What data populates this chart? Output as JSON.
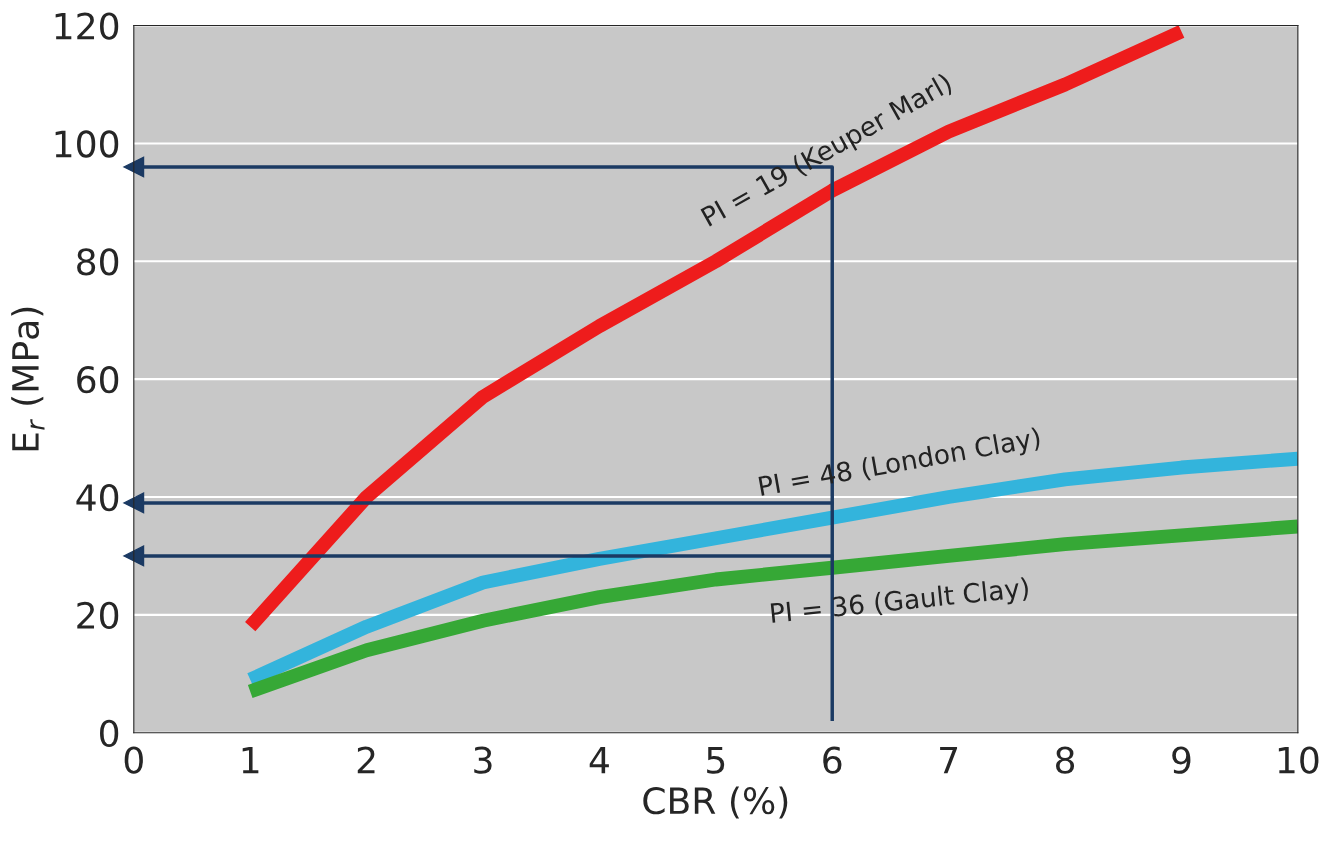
{
  "chart_data": {
    "type": "line",
    "xlabel": "CBR (%)",
    "ylabel": "E$_{r}$ (MPa)",
    "xlim": [
      0,
      10
    ],
    "ylim": [
      0,
      120
    ],
    "xticks": [
      0,
      1,
      2,
      3,
      4,
      5,
      6,
      7,
      8,
      9,
      10
    ],
    "yticks": [
      0,
      20,
      40,
      60,
      80,
      100,
      120
    ],
    "grid": "y",
    "series": [
      {
        "name": "PI = 19 (Keuper Marl)",
        "color": "#ee1c1c",
        "x": [
          1,
          2,
          3,
          4,
          5,
          6,
          7,
          8,
          9
        ],
        "values": [
          18,
          40,
          57,
          69,
          80,
          92,
          102,
          110,
          119
        ]
      },
      {
        "name": "PI = 48 (London Clay)",
        "color": "#33b4dc",
        "x": [
          1,
          2,
          3,
          4,
          5,
          6,
          7,
          8,
          9,
          10
        ],
        "values": [
          9,
          18,
          25.5,
          29.5,
          33,
          36.5,
          40,
          43,
          45,
          46.5
        ]
      },
      {
        "name": "PI = 36 (Gault Clay)",
        "color": "#36a836",
        "x": [
          1,
          2,
          3,
          4,
          5,
          6,
          7,
          8,
          9,
          10
        ],
        "values": [
          7,
          14,
          19,
          23,
          26,
          28,
          30,
          32,
          33.5,
          35
        ]
      },
      {
        "type": "line",
        "color": "#1b3a63",
        "x": [
          6,
          6
        ],
        "values": [
          2,
          96
        ]
      },
      {
        "type": "line",
        "marker": "triangle",
        "color": "#1b3a63",
        "x": [
          6,
          0
        ],
        "values": [
          96,
          96
        ]
      },
      {
        "type": "line",
        "marker": "triangle",
        "color": "#1b3a63",
        "x": [
          6,
          0
        ],
        "values": [
          39,
          39
        ]
      },
      {
        "type": "line",
        "marker": "triangle",
        "color": "#1b3a63",
        "x": [
          6,
          0
        ],
        "values": [
          30,
          30
        ]
      }
    ]
  }
}
